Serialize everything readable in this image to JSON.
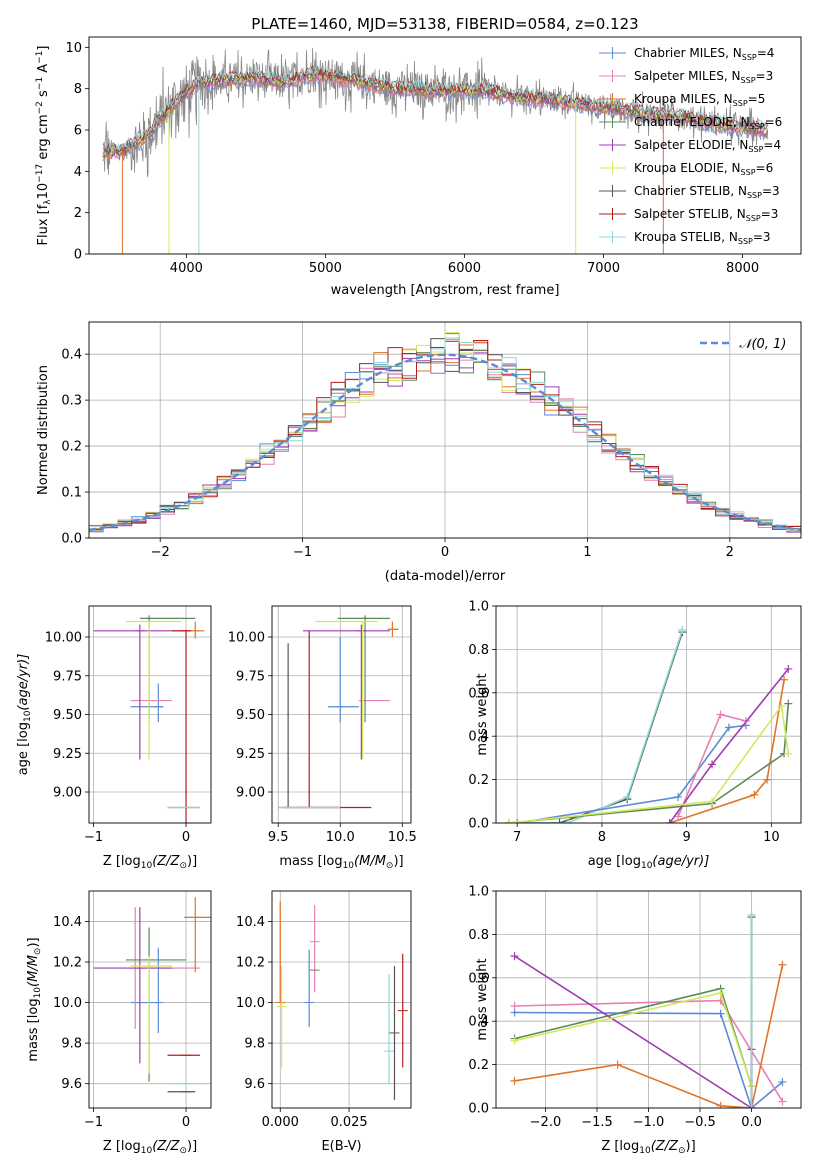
{
  "title": "PLATE=1460, MJD=53138, FIBERID=0584, z=0.123",
  "colors": {
    "chabrier_miles": "#5b8ad6",
    "salpeter_miles": "#e87fb5",
    "kroupa_miles": "#e0752a",
    "chabrier_elodie": "#5b8a5b",
    "salpeter_elodie": "#a03cb4",
    "kroupa_elodie": "#d4e85a",
    "chabrier_stelib": "#555555",
    "salpeter_stelib": "#b41e1e",
    "kroupa_stelib": "#8fd8d8",
    "data_gray": "#888888"
  },
  "chart_data": [
    {
      "id": "spectrum",
      "type": "line",
      "xlabel": "wavelength [Angstrom, rest frame]",
      "ylabel_parts": [
        "Flux [f",
        "λ",
        "10",
        "−17",
        " erg cm",
        "−2",
        " s",
        "−1",
        " A",
        "−1",
        "]"
      ],
      "xlim": [
        3300,
        8420
      ],
      "ylim": [
        0,
        10.5
      ],
      "xticks": [
        4000,
        5000,
        6000,
        7000,
        8000
      ],
      "yticks": [
        0,
        2,
        4,
        6,
        8,
        10
      ],
      "legend": [
        {
          "name": "Chabrier MILES",
          "sub": "SSP",
          "n": "4",
          "color_key": "chabrier_miles"
        },
        {
          "name": "Salpeter MILES",
          "sub": "SSP",
          "n": "3",
          "color_key": "salpeter_miles"
        },
        {
          "name": "Kroupa MILES",
          "sub": "SSP",
          "n": "5",
          "color_key": "kroupa_miles"
        },
        {
          "name": "Chabrier ELODIE",
          "sub": "SSP",
          "n": "6",
          "color_key": "chabrier_elodie"
        },
        {
          "name": "Salpeter ELODIE",
          "sub": "SSP",
          "n": "4",
          "color_key": "salpeter_elodie"
        },
        {
          "name": "Kroupa ELODIE",
          "sub": "SSP",
          "n": "6",
          "color_key": "kroupa_elodie"
        },
        {
          "name": "Chabrier STELIB",
          "sub": "SSP",
          "n": "3",
          "color_key": "chabrier_stelib"
        },
        {
          "name": "Salpeter STELIB",
          "sub": "SSP",
          "n": "3",
          "color_key": "salpeter_stelib"
        },
        {
          "name": "Kroupa STELIB",
          "sub": "SSP",
          "n": "3",
          "color_key": "kroupa_stelib"
        }
      ],
      "legend_position": "upper right",
      "grid": false,
      "continuum_knots": {
        "x": [
          3400,
          3550,
          3700,
          3900,
          4000,
          4100,
          4300,
          4500,
          4700,
          4900,
          5200,
          5500,
          5800,
          6100,
          6400,
          6700,
          7000,
          7300,
          7600,
          7900,
          8150
        ],
        "y": [
          4.9,
          5.0,
          5.6,
          7.2,
          7.8,
          8.3,
          8.4,
          8.5,
          8.3,
          8.7,
          8.4,
          8.0,
          7.9,
          7.9,
          7.6,
          7.4,
          7.1,
          6.8,
          6.6,
          6.2,
          6.0
        ]
      },
      "model_dips": [
        {
          "x": 3540,
          "color_key": "kroupa_miles"
        },
        {
          "x": 3875,
          "color_key": "kroupa_elodie"
        },
        {
          "x": 4090,
          "color_key": "kroupa_stelib"
        },
        {
          "x": 6800,
          "color_key": "kroupa_elodie"
        },
        {
          "x": 7430,
          "color_key": "kroupa_miles"
        }
      ]
    },
    {
      "id": "residuals",
      "type": "line",
      "xlabel": "(data-model)/error",
      "ylabel": "Normed distribution",
      "xlim": [
        -2.5,
        2.5
      ],
      "ylim": [
        0,
        0.47
      ],
      "xticks": [
        -2,
        -1,
        0,
        1,
        2
      ],
      "yticks": [
        0.0,
        0.1,
        0.2,
        0.3,
        0.4
      ],
      "grid": true,
      "gaussian_label": "𝒩(0, 1)",
      "bin_width": 0.1,
      "legend_position": "upper right"
    },
    {
      "id": "age_vs_Z",
      "type": "scatter",
      "xlabel_prefix": "Z [log",
      "xlabel_sub": "10",
      "xlabel_suffix": "(Z/Z",
      "xlabel_end": ")]",
      "ylabel_prefix": "age  [log",
      "ylabel_sub": "10",
      "ylabel_suffix": "(age/yr)]",
      "xlim": [
        -1.05,
        0.27
      ],
      "ylim": [
        8.8,
        10.2
      ],
      "xticks": [
        -1,
        0
      ],
      "yticks": [
        9.0,
        9.25,
        9.5,
        9.75,
        10.0
      ],
      "grid": true,
      "points": [
        {
          "x": -0.3,
          "xerr": [
            0.3,
            0.05
          ],
          "y": 9.55,
          "yerr": [
            0.1,
            0.15
          ],
          "color_key": "chabrier_miles"
        },
        {
          "x": -0.3,
          "xerr": [
            0.3,
            0.15
          ],
          "y": 9.59,
          "yerr": [
            0,
            0
          ],
          "color_key": "salpeter_miles"
        },
        {
          "x": 0.1,
          "xerr": [
            0.1,
            0.1
          ],
          "y": 10.04,
          "yerr": [
            0.05,
            0.06
          ],
          "color_key": "kroupa_miles"
        },
        {
          "x": -0.4,
          "xerr": [
            0.1,
            0.5
          ],
          "y": 10.12,
          "yerr": [
            0.67,
            0.02
          ],
          "color_key": "chabrier_elodie"
        },
        {
          "x": -0.5,
          "xerr": [
            0.5,
            0.5
          ],
          "y": 10.04,
          "yerr": [
            0.83,
            0.04
          ],
          "color_key": "salpeter_elodie"
        },
        {
          "x": -0.4,
          "xerr": [
            0.25,
            0.35
          ],
          "y": 10.1,
          "yerr": [
            0.89,
            0
          ],
          "color_key": "kroupa_elodie"
        },
        {
          "x": 0.0,
          "xerr": [
            0.2,
            0.15
          ],
          "y": 8.9,
          "yerr": [
            0,
            0
          ],
          "color_key": "chabrier_stelib"
        },
        {
          "x": 0.0,
          "xerr": [
            0.15,
            0.05
          ],
          "y": 10.04,
          "yerr": [
            1.24,
            0
          ],
          "color_key": "salpeter_stelib"
        },
        {
          "x": 0.0,
          "xerr": [
            0.2,
            0.15
          ],
          "y": 8.9,
          "yerr": [
            0,
            0
          ],
          "color_key": "kroupa_stelib"
        }
      ]
    },
    {
      "id": "age_vs_mass",
      "type": "scatter",
      "xlabel_prefix": "mass [log",
      "xlabel_sub": "10",
      "xlabel_suffix": "(M/M",
      "xlabel_end": ")]",
      "ylabel": "",
      "xlim": [
        9.45,
        10.57
      ],
      "ylim": [
        8.8,
        10.2
      ],
      "xticks": [
        9.5,
        10.0,
        10.5
      ],
      "yticks": [
        9.0,
        9.25,
        9.5,
        9.75,
        10.0
      ],
      "grid": true,
      "points": [
        {
          "x": 10.0,
          "xerr": [
            0.1,
            0.15
          ],
          "y": 9.55,
          "yerr": [
            0.1,
            0.45
          ],
          "color_key": "chabrier_miles"
        },
        {
          "x": 10.2,
          "xerr": [
            0.05,
            0.2
          ],
          "y": 9.59,
          "yerr": [
            0,
            0
          ],
          "color_key": "salpeter_miles"
        },
        {
          "x": 10.42,
          "xerr": [
            0.03,
            0.05
          ],
          "y": 10.05,
          "yerr": [
            0.05,
            0.05
          ],
          "color_key": "kroupa_miles"
        },
        {
          "x": 10.2,
          "xerr": [
            0.22,
            0.2
          ],
          "y": 10.12,
          "yerr": [
            0.67,
            0.02
          ],
          "color_key": "chabrier_elodie"
        },
        {
          "x": 10.17,
          "xerr": [
            0.47,
            0.23
          ],
          "y": 10.04,
          "yerr": [
            0.83,
            0.04
          ],
          "color_key": "salpeter_elodie"
        },
        {
          "x": 10.18,
          "xerr": [
            0.38,
            0.12
          ],
          "y": 10.1,
          "yerr": [
            0.89,
            0
          ],
          "color_key": "kroupa_elodie"
        },
        {
          "x": 9.58,
          "xerr": [
            0.08,
            0.42
          ],
          "y": 8.9,
          "yerr": [
            0,
            1.06
          ],
          "color_key": "chabrier_stelib"
        },
        {
          "x": 9.75,
          "xerr": [
            0.2,
            0.5
          ],
          "y": 8.9,
          "yerr": [
            0,
            1.14
          ],
          "color_key": "salpeter_stelib"
        },
        {
          "x": 9.6,
          "xerr": [
            0.1,
            0.4
          ],
          "y": 8.9,
          "yerr": [
            0,
            0
          ],
          "color_key": "kroupa_stelib"
        }
      ]
    },
    {
      "id": "mass_weight_vs_age",
      "type": "line",
      "xlabel_prefix": "age  [log",
      "xlabel_sub": "10",
      "xlabel_suffix": "(age/yr)]",
      "ylabel": "mass weight",
      "xlim": [
        6.75,
        10.35
      ],
      "ylim": [
        0,
        1.0
      ],
      "xticks": [
        7,
        8,
        9,
        10
      ],
      "yticks": [
        0.0,
        0.2,
        0.4,
        0.6,
        0.8,
        1.0
      ],
      "grid": true,
      "series": [
        {
          "color_key": "chabrier_stelib",
          "x": [
            6.9,
            7.5,
            8.3,
            8.95
          ],
          "y": [
            0.0,
            0.0,
            0.11,
            0.88
          ]
        },
        {
          "color_key": "kroupa_stelib",
          "x": [
            6.9,
            7.6,
            8.3,
            8.95
          ],
          "y": [
            0.0,
            0.0,
            0.12,
            0.89
          ]
        },
        {
          "color_key": "chabrier_miles",
          "x": [
            7.0,
            8.9,
            9.5,
            9.7
          ],
          "y": [
            0.0,
            0.12,
            0.44,
            0.45
          ]
        },
        {
          "color_key": "salpeter_miles",
          "x": [
            8.9,
            9.4,
            9.7
          ],
          "y": [
            0.03,
            0.5,
            0.47
          ]
        },
        {
          "color_key": "kroupa_miles",
          "x": [
            8.8,
            9.8,
            9.95,
            10.15
          ],
          "y": [
            0.0,
            0.13,
            0.2,
            0.66
          ]
        },
        {
          "color_key": "chabrier_elodie",
          "x": [
            6.9,
            9.3,
            10.15,
            10.2
          ],
          "y": [
            0.0,
            0.09,
            0.32,
            0.55
          ]
        },
        {
          "color_key": "salpeter_elodie",
          "x": [
            8.8,
            9.3,
            10.2
          ],
          "y": [
            0.0,
            0.27,
            0.71
          ]
        },
        {
          "color_key": "kroupa_elodie",
          "x": [
            6.9,
            9.3,
            10.12,
            10.2
          ],
          "y": [
            0.0,
            0.1,
            0.54,
            0.32
          ]
        }
      ]
    },
    {
      "id": "mass_vs_Z",
      "type": "scatter",
      "xlabel_prefix": "Z [log",
      "xlabel_sub": "10",
      "xlabel_suffix": "(Z/Z",
      "xlabel_end": ")]",
      "ylabel_prefix": "mass [log",
      "ylabel_sub": "10",
      "ylabel_suffix": "(M/M",
      "ylabel_end": ")]",
      "xlim": [
        -1.05,
        0.27
      ],
      "ylim": [
        9.48,
        10.55
      ],
      "xticks": [
        -1,
        0
      ],
      "yticks": [
        9.6,
        9.8,
        10.0,
        10.2,
        10.4
      ],
      "grid": true,
      "points": [
        {
          "x": -0.3,
          "xerr": [
            0.3,
            0.0
          ],
          "y": 10.0,
          "yerr": [
            0.15,
            0.27
          ],
          "color_key": "chabrier_miles"
        },
        {
          "x": -0.55,
          "xerr": [
            0.1,
            0.7
          ],
          "y": 10.17,
          "yerr": [
            0.3,
            0.3
          ],
          "color_key": "salpeter_miles"
        },
        {
          "x": 0.1,
          "xerr": [
            0.12,
            0.2
          ],
          "y": 10.42,
          "yerr": [
            0.27,
            0.1
          ],
          "color_key": "kroupa_miles"
        },
        {
          "x": -0.4,
          "xerr": [
            0.25,
            0.4
          ],
          "y": 10.21,
          "yerr": [
            0.6,
            0.16
          ],
          "color_key": "chabrier_elodie"
        },
        {
          "x": -0.5,
          "xerr": [
            0.5,
            0.35
          ],
          "y": 10.17,
          "yerr": [
            0.47,
            0.3
          ],
          "color_key": "salpeter_elodie"
        },
        {
          "x": -0.4,
          "xerr": [
            0.2,
            0.25
          ],
          "y": 10.18,
          "yerr": [
            0.53,
            0.05
          ],
          "color_key": "kroupa_elodie"
        },
        {
          "x": 0.0,
          "xerr": [
            0.2,
            0.1
          ],
          "y": 9.56,
          "yerr": [
            0,
            0
          ],
          "color_key": "chabrier_stelib"
        },
        {
          "x": 0.0,
          "xerr": [
            0.2,
            0.15
          ],
          "y": 9.74,
          "yerr": [
            0,
            0
          ],
          "color_key": "salpeter_stelib"
        },
        {
          "x": 0.0,
          "xerr": [
            0.2,
            0.2
          ],
          "y": 9.6,
          "yerr": [
            0,
            0
          ],
          "color_key": "kroupa_stelib"
        }
      ]
    },
    {
      "id": "mass_vs_ebv",
      "type": "scatter",
      "xlabel": "E(B-V)",
      "xlim": [
        -0.003,
        0.0475
      ],
      "ylim": [
        9.48,
        10.55
      ],
      "xticks": [
        0.0,
        0.025
      ],
      "xticklabels": [
        "0.000",
        "0.025"
      ],
      "yticks": [
        9.6,
        9.8,
        10.0,
        10.2,
        10.4
      ],
      "grid": true,
      "points": [
        {
          "x": 0.0,
          "y": 10.0,
          "yerr": [
            0.0,
            0.5
          ],
          "color_key": "kroupa_miles"
        },
        {
          "x": 0.0005,
          "y": 9.98,
          "yerr": [
            0.3,
            0.2
          ],
          "color_key": "kroupa_elodie"
        },
        {
          "x": 0.0125,
          "y": 10.3,
          "yerr": [
            0.25,
            0.18
          ],
          "color_key": "salpeter_miles"
        },
        {
          "x": 0.0125,
          "y": 10.16,
          "yerr": [
            0,
            0
          ],
          "color_key": "chabrier_elodie"
        },
        {
          "x": 0.0105,
          "y": 10.0,
          "yerr": [
            0.12,
            0.26
          ],
          "color_key": "chabrier_miles"
        },
        {
          "x": 0.0395,
          "y": 9.76,
          "yerr": [
            0.16,
            0.38
          ],
          "color_key": "kroupa_stelib"
        },
        {
          "x": 0.0415,
          "y": 9.85,
          "yerr": [
            0.33,
            0.33
          ],
          "color_key": "chabrier_stelib"
        },
        {
          "x": 0.0445,
          "y": 9.96,
          "yerr": [
            0.28,
            0.28
          ],
          "color_key": "salpeter_stelib"
        }
      ]
    },
    {
      "id": "mass_weight_vs_Z",
      "type": "line",
      "xlabel_prefix": "Z [log",
      "xlabel_sub": "10",
      "xlabel_suffix": "(Z/Z",
      "xlabel_end": ")]",
      "ylabel": "mass weight",
      "xlim": [
        -2.48,
        0.48
      ],
      "ylim": [
        0,
        1.0
      ],
      "xticks": [
        -2.0,
        -1.5,
        -1.0,
        -0.5,
        0.0
      ],
      "grid": true,
      "yticks": [
        0.0,
        0.2,
        0.4,
        0.6,
        0.8,
        1.0
      ],
      "series": [
        {
          "color_key": "chabrier_miles",
          "x": [
            -2.3,
            -0.3,
            0.0,
            0.3
          ],
          "y": [
            0.44,
            0.435,
            0.0,
            0.12
          ]
        },
        {
          "color_key": "salpeter_miles",
          "x": [
            -2.3,
            -0.3,
            0.3
          ],
          "y": [
            0.47,
            0.495,
            0.03
          ]
        },
        {
          "color_key": "kroupa_miles",
          "x": [
            -2.3,
            -1.3,
            -0.3,
            0.0,
            0.3
          ],
          "y": [
            0.125,
            0.2,
            0.01,
            0.0,
            0.66
          ]
        },
        {
          "color_key": "chabrier_elodie",
          "x": [
            -2.3,
            -0.3,
            0.0
          ],
          "y": [
            0.32,
            0.55,
            0.1
          ]
        },
        {
          "color_key": "salpeter_elodie",
          "x": [
            -2.3,
            0.0,
            0.0
          ],
          "y": [
            0.7,
            0.0,
            0.27
          ]
        },
        {
          "color_key": "kroupa_elodie",
          "x": [
            -2.3,
            -0.3,
            0.0
          ],
          "y": [
            0.31,
            0.53,
            0.1
          ]
        },
        {
          "color_key": "chabrier_stelib",
          "x": [
            0.0,
            0.0
          ],
          "y": [
            0.0,
            0.88
          ]
        },
        {
          "color_key": "kroupa_stelib",
          "x": [
            0.0,
            0.0
          ],
          "y": [
            0.0,
            0.89
          ]
        }
      ]
    }
  ]
}
